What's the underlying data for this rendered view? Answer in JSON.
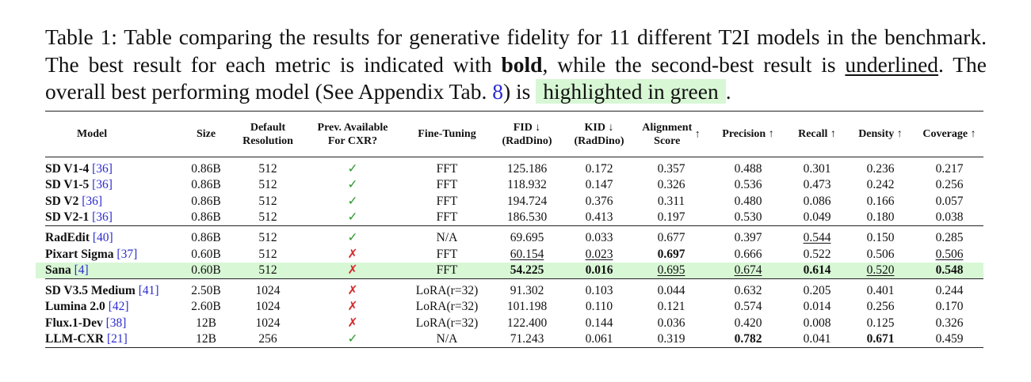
{
  "caption": {
    "part1": "Table 1: Table comparing the results for generative fidelity for 11 different T2I models in the benchmark. The best result for each metric is indicated with ",
    "bold_word": "bold",
    "part2": ", while the second-best result is ",
    "underlined_word": "underlined",
    "part3": ". The overall best performing model (See Appendix Tab. ",
    "ref": "8",
    "part4": ") is ",
    "highlight_phrase": "highlighted in green",
    "part5": "."
  },
  "header": {
    "model": "Model",
    "size": "Size",
    "res1": "Default",
    "res2": "Resolution",
    "prev1": "Prev. Available",
    "prev2": "For CXR?",
    "ft": "Fine-Tuning",
    "fid1": "FID ↓",
    "fid2": "(RadDino)",
    "kid1": "KID ↓",
    "kid2": "(RadDino)",
    "align1": "Alignment",
    "align2": "Score",
    "align_arrow": "↑",
    "precision": "Precision ↑",
    "recall": "Recall ↑",
    "density": "Density ↑",
    "coverage": "Coverage ↑"
  },
  "rows": [
    {
      "name": "SD V1-4",
      "cite": "[36]",
      "size": "0.86B",
      "res": "512",
      "prev": "✓",
      "ft": "FFT",
      "fid": "125.186",
      "kid": "0.172",
      "align": "0.357",
      "prec": "0.488",
      "rec": "0.301",
      "dens": "0.236",
      "cov": "0.217"
    },
    {
      "name": "SD V1-5",
      "cite": "[36]",
      "size": "0.86B",
      "res": "512",
      "prev": "✓",
      "ft": "FFT",
      "fid": "118.932",
      "kid": "0.147",
      "align": "0.326",
      "prec": "0.536",
      "rec": "0.473",
      "dens": "0.242",
      "cov": "0.256"
    },
    {
      "name": "SD V2",
      "cite": "[36]",
      "size": "0.86B",
      "res": "512",
      "prev": "✓",
      "ft": "FFT",
      "fid": "194.724",
      "kid": "0.376",
      "align": "0.311",
      "prec": "0.480",
      "rec": "0.086",
      "dens": "0.166",
      "cov": "0.057"
    },
    {
      "name": "SD V2-1",
      "cite": "[36]",
      "size": "0.86B",
      "res": "512",
      "prev": "✓",
      "ft": "FFT",
      "fid": "186.530",
      "kid": "0.413",
      "align": "0.197",
      "prec": "0.530",
      "rec": "0.049",
      "dens": "0.180",
      "cov": "0.038"
    },
    {
      "name": "RadEdit",
      "cite": "[40]",
      "size": "0.86B",
      "res": "512",
      "prev": "✓",
      "ft": "N/A",
      "fid": "69.695",
      "kid": "0.033",
      "align": "0.677",
      "prec": "0.397",
      "rec": "0.544",
      "dens": "0.150",
      "cov": "0.285"
    },
    {
      "name": "Pixart Sigma",
      "cite": "[37]",
      "size": "0.60B",
      "res": "512",
      "prev": "✗",
      "ft": "FFT",
      "fid": "60.154",
      "kid": "0.023",
      "align": "0.697",
      "prec": "0.666",
      "rec": "0.522",
      "dens": "0.506",
      "cov": "0.506"
    },
    {
      "name": "Sana",
      "cite": "[4]",
      "size": "0.60B",
      "res": "512",
      "prev": "✗",
      "ft": "FFT",
      "fid": "54.225",
      "kid": "0.016",
      "align": "0.695",
      "prec": "0.674",
      "rec": "0.614",
      "dens": "0.520",
      "cov": "0.548"
    },
    {
      "name": "SD V3.5 Medium",
      "cite": "[41]",
      "size": "2.50B",
      "res": "1024",
      "prev": "✗",
      "ft": "LoRA(r=32)",
      "fid": "91.302",
      "kid": "0.103",
      "align": "0.044",
      "prec": "0.632",
      "rec": "0.205",
      "dens": "0.401",
      "cov": "0.244"
    },
    {
      "name": "Lumina 2.0",
      "cite": "[42]",
      "size": "2.60B",
      "res": "1024",
      "prev": "✗",
      "ft": "LoRA(r=32)",
      "fid": "101.198",
      "kid": "0.110",
      "align": "0.121",
      "prec": "0.574",
      "rec": "0.014",
      "dens": "0.256",
      "cov": "0.170"
    },
    {
      "name": "Flux.1-Dev",
      "cite": "[38]",
      "size": "12B",
      "res": "1024",
      "prev": "✗",
      "ft": "LoRA(r=32)",
      "fid": "122.400",
      "kid": "0.144",
      "align": "0.036",
      "prec": "0.420",
      "rec": "0.008",
      "dens": "0.125",
      "cov": "0.326"
    },
    {
      "name": "LLM-CXR",
      "cite": "[21]",
      "size": "12B",
      "res": "256",
      "prev": "✓",
      "ft": "N/A",
      "fid": "71.243",
      "kid": "0.061",
      "align": "0.319",
      "prec": "0.782",
      "rec": "0.041",
      "dens": "0.671",
      "cov": "0.459"
    }
  ],
  "colors": {
    "highlight": "#d8f7d5",
    "check": "#2e9a2e",
    "cross": "#d42a2a",
    "citation": "#2a2ad0"
  }
}
